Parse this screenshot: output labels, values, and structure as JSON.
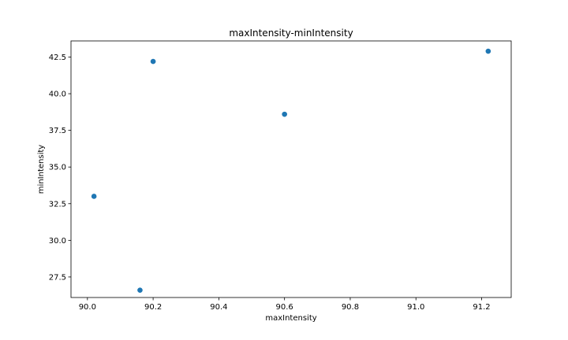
{
  "chart_data": {
    "type": "scatter",
    "title": "maxIntensity-minIntensity",
    "xlabel": "maxIntensity",
    "ylabel": "minIntensity",
    "xlim": [
      89.95,
      91.29
    ],
    "ylim": [
      26.1,
      43.6
    ],
    "xticks": [
      90.0,
      90.2,
      90.4,
      90.6,
      90.8,
      91.0,
      91.2
    ],
    "xtick_labels": [
      "90.0",
      "90.2",
      "90.4",
      "90.6",
      "90.8",
      "91.0",
      "91.2"
    ],
    "yticks": [
      27.5,
      30.0,
      32.5,
      35.0,
      37.5,
      40.0,
      42.5
    ],
    "ytick_labels": [
      "27.5",
      "30.0",
      "32.5",
      "35.0",
      "37.5",
      "40.0",
      "42.5"
    ],
    "points": [
      {
        "x": 90.02,
        "y": 33.0
      },
      {
        "x": 90.16,
        "y": 26.6
      },
      {
        "x": 90.2,
        "y": 42.2
      },
      {
        "x": 90.6,
        "y": 38.6
      },
      {
        "x": 91.22,
        "y": 42.9
      }
    ],
    "marker_color": "#1f77b4",
    "grid": false,
    "legend": "none"
  }
}
